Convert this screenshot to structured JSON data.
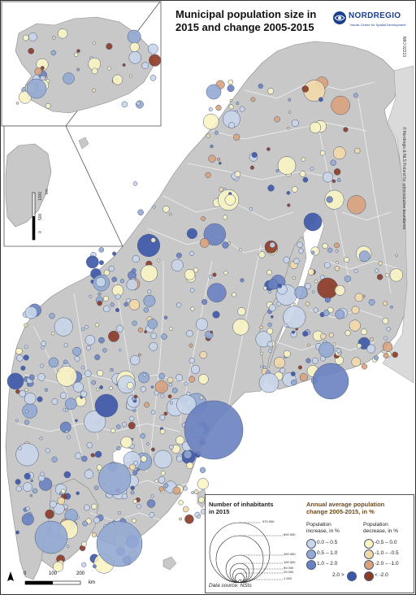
{
  "title_line1": "Municipal population size in",
  "title_line2": "2015 and change 2005-2015",
  "logo": {
    "name": "NORDREGIO",
    "tagline": "Nordic Centre for Spatial Development"
  },
  "copyright": "© Nordregio & NLS Finland for administrative boundaries",
  "map_id": "NRJ 02213",
  "scale_main": {
    "labels": [
      "0",
      "100",
      "200"
    ],
    "unit": "km"
  },
  "scale_inset": {
    "labels": [
      "0",
      "500",
      "1000"
    ],
    "unit": "km"
  },
  "legend": {
    "size_title_1": "Number of inhabitants",
    "size_title_2": "in 2015",
    "size_values": [
      "970 000",
      "600 000",
      "200 000",
      "100 000",
      "50 000",
      "20 000",
      "1 000"
    ],
    "change_title_1": "Annual average population",
    "change_title_2": "change 2005-2015, in %",
    "increase_title_1": "Population",
    "increase_title_2": "increase, in %",
    "decrease_title_1": "Population",
    "decrease_title_2": "decrease, in %",
    "increase_classes": [
      "0.0 – 0.5",
      "0.5 – 1.0",
      "1.0 – 2.0",
      "2.0 >"
    ],
    "decrease_classes": [
      "-0.5 – 0.0",
      "-1.0 – -0.5",
      "-2.0 – -1.0",
      "< -2.0"
    ],
    "increase_colors": [
      "#c9d6ea",
      "#93a9d3",
      "#6a82c0",
      "#3c57a8"
    ],
    "decrease_colors": [
      "#fbf4c4",
      "#f2d9a8",
      "#d9a27c",
      "#8c3a24"
    ],
    "source": "Data source: NSIs"
  },
  "colors": {
    "land": "#c8c8c8",
    "sea": "#ffffff",
    "boundary": "#f4f4f4",
    "circle_stroke": "#4a5a7a"
  }
}
